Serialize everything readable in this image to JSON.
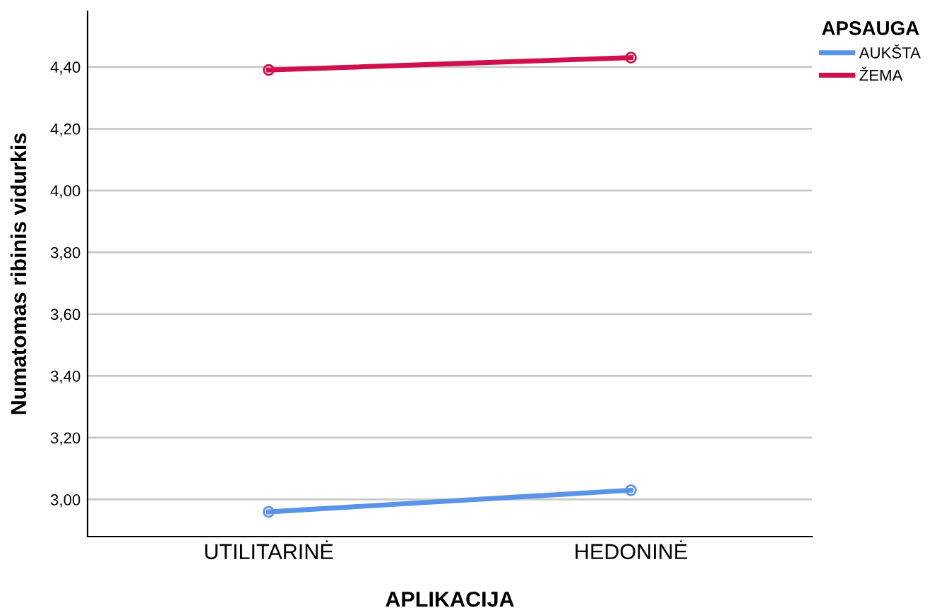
{
  "chart_data": {
    "type": "line",
    "xlabel": "APLIKACIJA",
    "ylabel": "Numatomas ribinis vidurkis",
    "legend_title": "APSAUGA",
    "categories": [
      "UTILITARINĖ",
      "HEDONINĖ"
    ],
    "series": [
      {
        "name": "AUKŠTA",
        "color": "#5b93e8",
        "values": [
          2.96,
          3.03
        ]
      },
      {
        "name": "ŽEMA",
        "color": "#d0104c",
        "values": [
          4.39,
          4.43
        ]
      }
    ],
    "ylim": [
      2.88,
      4.58
    ],
    "yticks": [
      {
        "value": 3.0,
        "label": "3,00"
      },
      {
        "value": 3.2,
        "label": "3,20"
      },
      {
        "value": 3.4,
        "label": "3,40"
      },
      {
        "value": 3.6,
        "label": "3,60"
      },
      {
        "value": 3.8,
        "label": "3,80"
      },
      {
        "value": 4.0,
        "label": "4,00"
      },
      {
        "value": 4.2,
        "label": "4,20"
      },
      {
        "value": 4.4,
        "label": "4,40"
      }
    ],
    "grid": "y",
    "legend": "top right",
    "marker": "circle",
    "line_style": "solid"
  }
}
